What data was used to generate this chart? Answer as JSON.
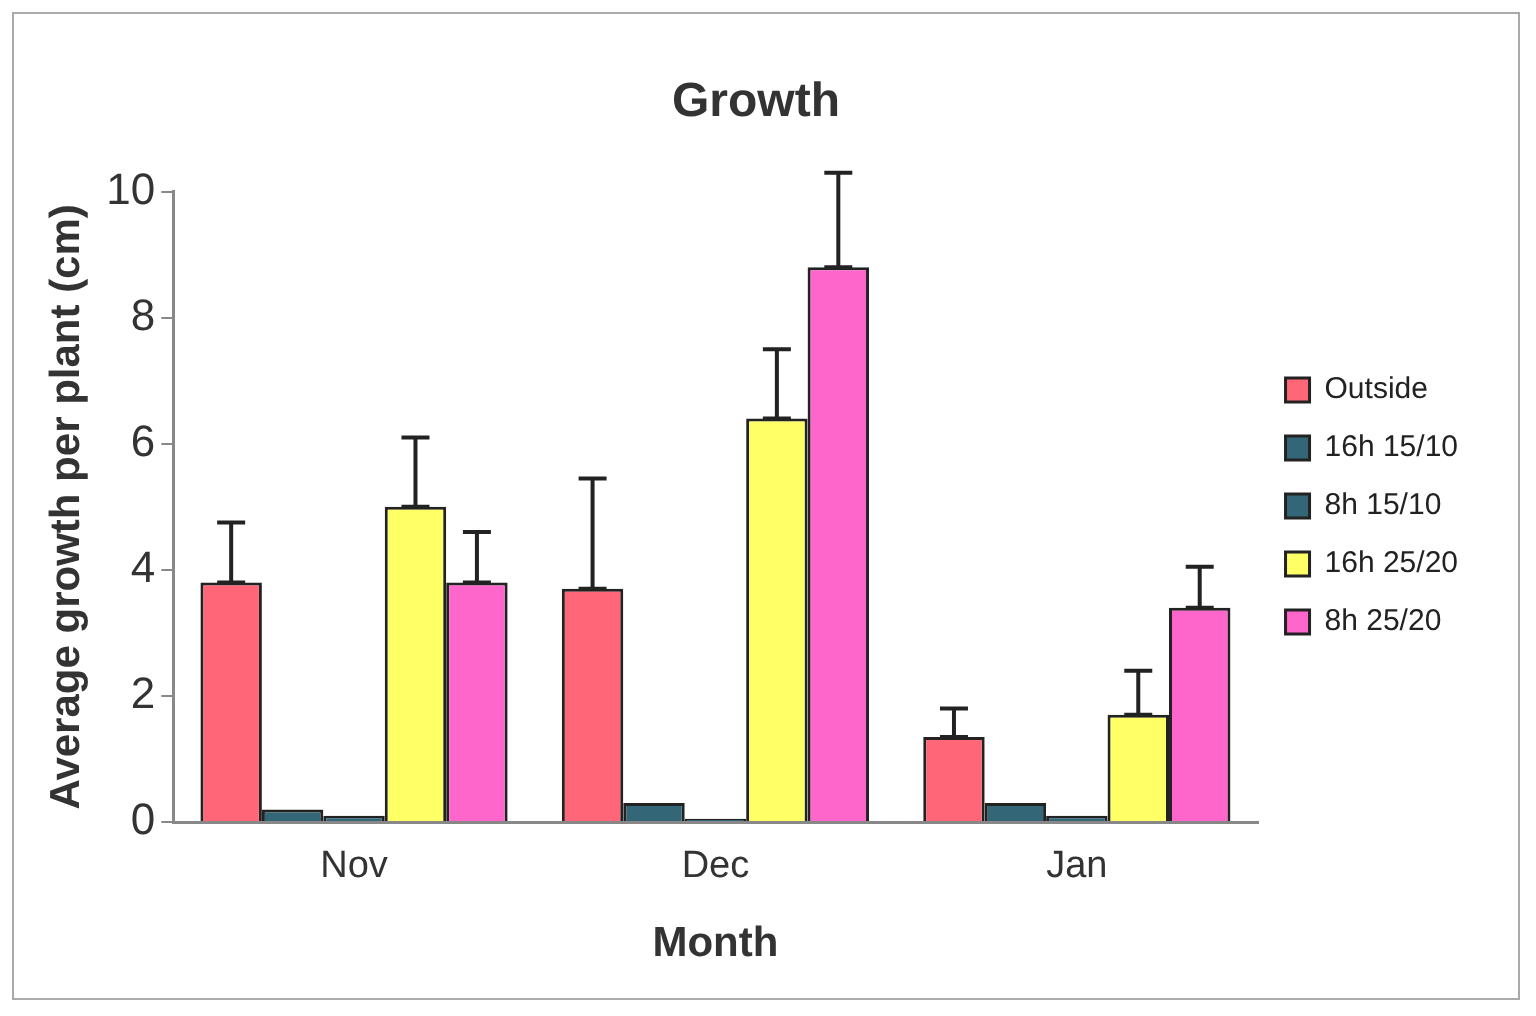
{
  "chart_data": {
    "type": "bar",
    "title": "Growth",
    "xlabel": "Month",
    "ylabel": "Average growth per plant (cm)",
    "categories": [
      "Nov",
      "Dec",
      "Jan"
    ],
    "series": [
      {
        "name": "Outside",
        "color": "#ff6677",
        "values": [
          3.8,
          3.7,
          1.35
        ],
        "errors": [
          [
            3.8,
            4.75
          ],
          [
            3.7,
            5.45
          ],
          [
            1.35,
            1.8
          ]
        ]
      },
      {
        "name": "16h 15/10",
        "color": "#336677",
        "values": [
          0.2,
          0.3,
          0.3
        ]
      },
      {
        "name": "8h 15/10",
        "color": "#336677",
        "values": [
          0.1,
          0.05,
          0.1
        ]
      },
      {
        "name": "16h 25/20",
        "color": "#ffff66",
        "values": [
          5.0,
          6.4,
          1.7
        ],
        "errors": [
          [
            5.0,
            6.1
          ],
          [
            6.4,
            7.5
          ],
          [
            1.7,
            2.4
          ]
        ]
      },
      {
        "name": "8h 25/20",
        "color": "#ff66cc",
        "values": [
          3.8,
          8.8,
          3.4
        ],
        "errors": [
          [
            3.8,
            4.6
          ],
          [
            8.8,
            10.3
          ],
          [
            3.4,
            4.05
          ]
        ]
      }
    ],
    "ylim": [
      0,
      10
    ],
    "yticks": [
      0,
      2,
      4,
      6,
      8,
      10
    ],
    "grid": false,
    "legend": "right"
  }
}
